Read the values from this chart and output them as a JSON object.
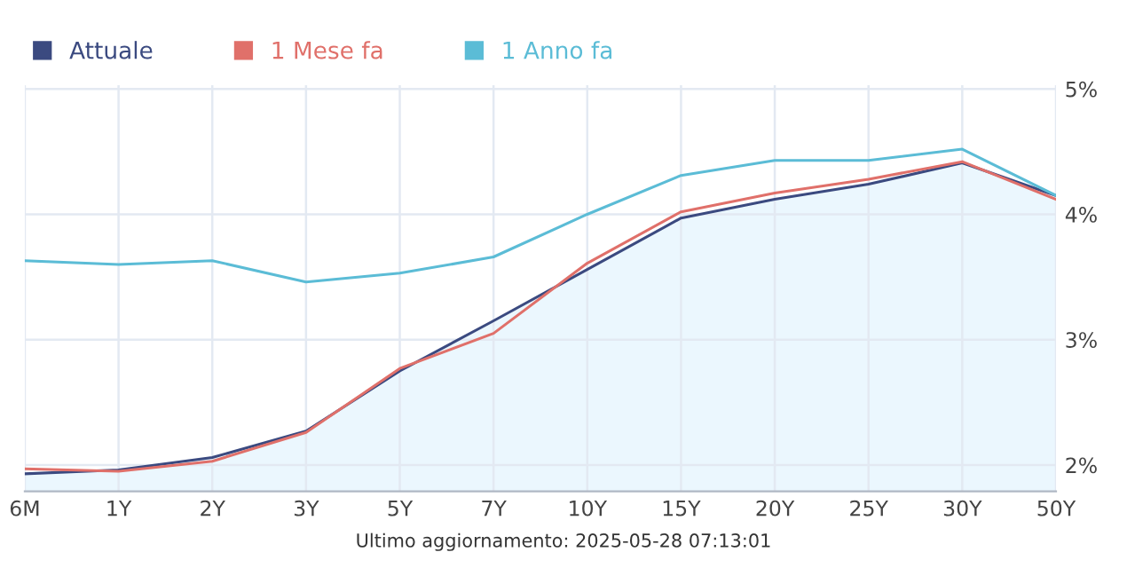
{
  "chart_data": {
    "type": "line",
    "categories": [
      "6M",
      "1Y",
      "2Y",
      "3Y",
      "5Y",
      "7Y",
      "10Y",
      "15Y",
      "20Y",
      "25Y",
      "30Y",
      "50Y"
    ],
    "series": [
      {
        "name": "Attuale",
        "type": "area",
        "color": "#3b4a80",
        "values": [
          1.93,
          1.96,
          2.06,
          2.27,
          2.75,
          3.15,
          3.56,
          3.97,
          4.12,
          4.24,
          4.41,
          4.15
        ]
      },
      {
        "name": "1 Mese fa",
        "color": "#e0706a",
        "values": [
          1.97,
          1.95,
          2.03,
          2.26,
          2.77,
          3.05,
          3.61,
          4.02,
          4.17,
          4.28,
          4.42,
          4.12
        ]
      },
      {
        "name": "1 Anno fa",
        "color": "#5bbcd6",
        "values": [
          3.63,
          3.6,
          3.63,
          3.46,
          3.53,
          3.66,
          4.0,
          4.31,
          4.43,
          4.43,
          4.52,
          4.15
        ]
      }
    ],
    "ylim": [
      1.79,
      5.03
    ],
    "yticks": [
      {
        "value": 2,
        "label": "2%"
      },
      {
        "value": 3,
        "label": "3%"
      },
      {
        "value": 4,
        "label": "4%"
      },
      {
        "value": 5,
        "label": "5%"
      }
    ],
    "grid": true,
    "legend": "top left",
    "marker": "none",
    "annotations": [
      "Ultimo aggiornamento: 2025-05-28 07:13:01"
    ]
  }
}
